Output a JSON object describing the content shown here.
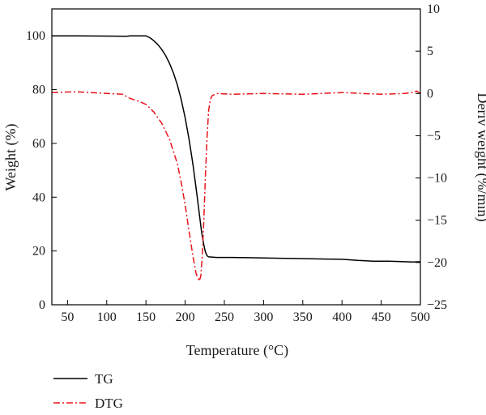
{
  "chart_data": {
    "type": "line",
    "xlabel": "Temperature (°C)",
    "ylabel_left": "Weight (%)",
    "ylabel_right": "Deriv weight (%/min)",
    "xlim": [
      30,
      500
    ],
    "ylim_left": [
      0,
      110
    ],
    "ylim_right": [
      -25,
      10
    ],
    "xticks": [
      50,
      100,
      150,
      200,
      250,
      300,
      350,
      400,
      450,
      500
    ],
    "yticks_left": [
      0,
      20,
      40,
      60,
      80,
      100
    ],
    "yticks_right": [
      -25,
      -20,
      -15,
      -10,
      -5,
      0,
      5,
      10
    ],
    "yticklabels_right": [
      "−25",
      "−20",
      "−15",
      "−10",
      "−5",
      "0",
      "5",
      "10"
    ],
    "grid": false,
    "legend_position": "below plot, bottom-left",
    "series": [
      {
        "name": "TG",
        "axis": "left",
        "color": "#000000",
        "style": "solid",
        "x": [
          30,
          60,
          100,
          125,
          130,
          150,
          155,
          160,
          165,
          170,
          175,
          180,
          185,
          190,
          195,
          200,
          205,
          210,
          215,
          218,
          221,
          224,
          226,
          228,
          230,
          235,
          240,
          260,
          280,
          300,
          320,
          340,
          360,
          380,
          400,
          420,
          440,
          460,
          480,
          490,
          500
        ],
        "y": [
          100,
          100,
          99.9,
          99.8,
          100,
          100,
          99.3,
          98.2,
          96.8,
          95,
          92.7,
          89.8,
          86.2,
          81.8,
          76.3,
          69.5,
          61.5,
          52,
          41,
          34,
          27,
          22,
          19.5,
          18.2,
          17.8,
          17.7,
          17.6,
          17.6,
          17.5,
          17.4,
          17.3,
          17.2,
          17.1,
          17,
          16.9,
          16.5,
          16.2,
          16.2,
          16,
          15.9,
          16
        ]
      },
      {
        "name": "DTG",
        "axis": "right",
        "color": "#e8141b",
        "style": "dash-dot",
        "x": [
          30,
          60,
          100,
          120,
          130,
          140,
          150,
          160,
          170,
          180,
          190,
          195,
          200,
          205,
          210,
          214,
          218,
          220,
          222,
          224,
          226,
          228,
          230,
          232,
          234,
          240,
          260,
          300,
          350,
          400,
          450,
          480,
          490,
          495,
          500
        ],
        "y": [
          0.1,
          0.2,
          0,
          -0.1,
          -0.6,
          -0.9,
          -1.3,
          -2.2,
          -3.5,
          -5.4,
          -8.3,
          -10.5,
          -13.2,
          -16.3,
          -19.3,
          -21.3,
          -22.2,
          -21.6,
          -19,
          -14.5,
          -9.5,
          -5,
          -2,
          -0.8,
          -0.3,
          0,
          -0.1,
          0,
          -0.1,
          0.1,
          -0.1,
          0,
          0.1,
          0.3,
          0
        ]
      }
    ]
  }
}
